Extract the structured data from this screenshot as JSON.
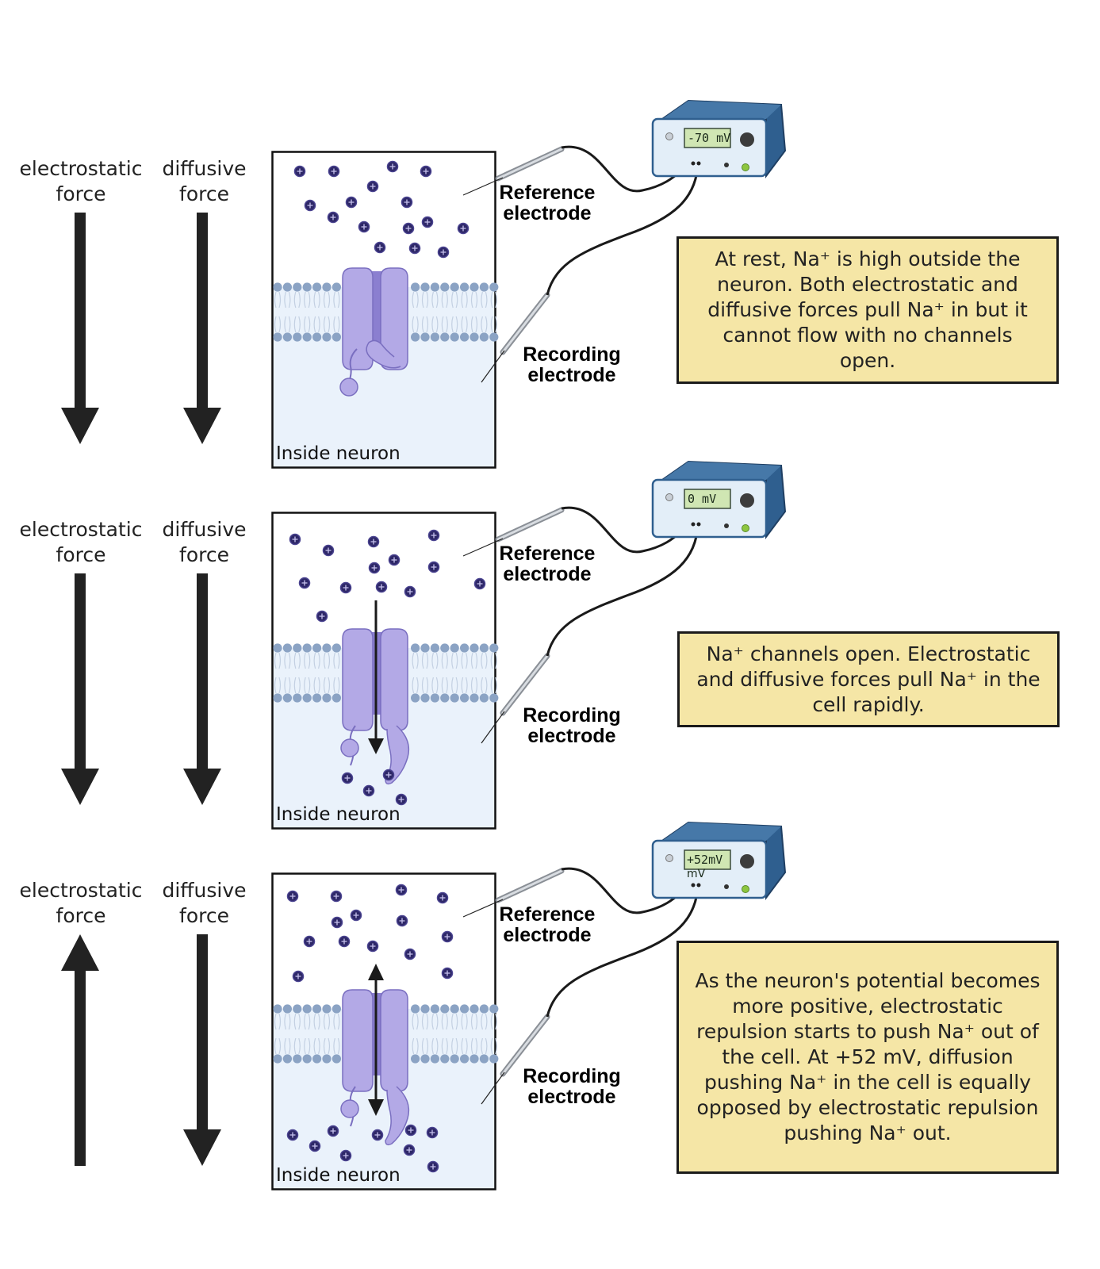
{
  "panels": [
    {
      "electrostatic_label": "electrostatic\nforce",
      "diffusive_label": "diffusive\nforce",
      "electrostatic_direction": "down",
      "diffusive_direction": "down",
      "channel_state": "closed",
      "inside_label": "Inside neuron",
      "reference_label": "Reference\nelectrode",
      "recording_label": "Recording\nelectrode",
      "meter_reading": "-70 mV",
      "meter_unit": "",
      "info_text": "At rest, Na⁺ is high outside the neuron. Both electrostatic and diffusive forces pull Na⁺ in but it cannot flow with no channels open."
    },
    {
      "electrostatic_label": "electrostatic\nforce",
      "diffusive_label": "diffusive\nforce",
      "electrostatic_direction": "down",
      "diffusive_direction": "down",
      "channel_state": "open-inward",
      "inside_label": "Inside neuron",
      "reference_label": "Reference\nelectrode",
      "recording_label": "Recording\nelectrode",
      "meter_reading": "0 mV",
      "meter_unit": "",
      "info_text": "Na⁺ channels open. Electrostatic and diffusive forces pull Na⁺ in the cell rapidly."
    },
    {
      "electrostatic_label": "electrostatic\nforce",
      "diffusive_label": "diffusive\nforce",
      "electrostatic_direction": "up",
      "diffusive_direction": "down",
      "channel_state": "open-equilibrium",
      "inside_label": "Inside neuron",
      "reference_label": "Reference\nelectrode",
      "recording_label": "Recording\nelectrode",
      "meter_reading": "+52mV",
      "meter_unit": "mV",
      "info_text": "As the neuron's potential becomes more positive, electrostatic repulsion starts to push Na⁺ out of the cell. At +52 mV, diffusion pushing Na⁺ in the cell is equally opposed by electrostatic repulsion pushing Na⁺ out."
    }
  ],
  "colors": {
    "arrow": "#222222",
    "ion": "#2e2868",
    "channel": "#b3a9e6",
    "channel_dark": "#8b7fd0",
    "membrane_head": "#8ba3c4",
    "inside_fill": "#eaf2fb",
    "meter_body": "#e3eef8",
    "meter_top": "#2f5f8f",
    "meter_screen": "#d0e6b3",
    "infobox": "#f5e6a6"
  }
}
